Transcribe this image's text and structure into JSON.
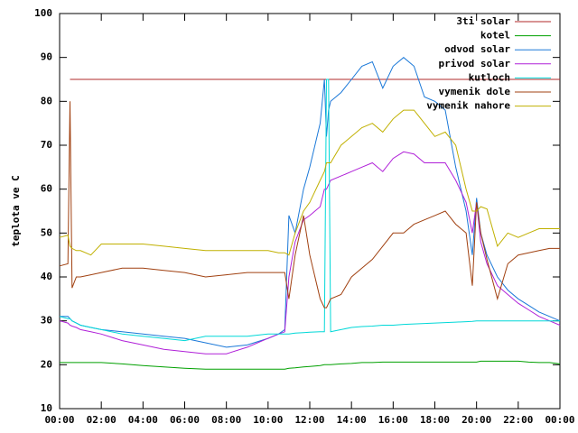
{
  "chart_data": {
    "type": "line",
    "ylabel": "teplota ve C",
    "x": [
      0,
      0.4,
      0.5,
      0.6,
      0.8,
      1,
      1.5,
      2,
      3,
      4,
      5,
      6,
      7,
      8,
      9,
      10,
      10.5,
      10.8,
      11,
      11.3,
      11.7,
      12,
      12.5,
      12.7,
      12.8,
      12.9,
      13,
      13.5,
      14,
      14.5,
      15,
      15.5,
      16,
      16.5,
      17,
      17.5,
      18,
      18.5,
      19,
      19.5,
      19.8,
      20,
      20.2,
      20.5,
      21,
      21.5,
      22,
      22.5,
      23,
      23.5,
      24
    ],
    "xlim": [
      0,
      24
    ],
    "xticks": [
      {
        "value": 0,
        "label": "00:00"
      },
      {
        "value": 2,
        "label": "02:00"
      },
      {
        "value": 4,
        "label": "04:00"
      },
      {
        "value": 6,
        "label": "06:00"
      },
      {
        "value": 8,
        "label": "08:00"
      },
      {
        "value": 10,
        "label": "10:00"
      },
      {
        "value": 12,
        "label": "12:00"
      },
      {
        "value": 14,
        "label": "14:00"
      },
      {
        "value": 16,
        "label": "16:00"
      },
      {
        "value": 18,
        "label": "18:00"
      },
      {
        "value": 20,
        "label": "20:00"
      },
      {
        "value": 22,
        "label": "22:00"
      },
      {
        "value": 24,
        "label": "00:00"
      }
    ],
    "ylim": [
      10,
      100
    ],
    "yticks": [
      10,
      20,
      30,
      40,
      50,
      60,
      70,
      80,
      90,
      100
    ],
    "legend": "top-right",
    "series": [
      {
        "name": "3ti solar",
        "color": "#b02828",
        "values": [
          null,
          null,
          85,
          85,
          85,
          85,
          85,
          85,
          85,
          85,
          85,
          85,
          85,
          85,
          85,
          85,
          85,
          85,
          85,
          85,
          85,
          85,
          85,
          85,
          85,
          85,
          85,
          85,
          85,
          85,
          85,
          85,
          85,
          85,
          85,
          85,
          85,
          85,
          85,
          85,
          85,
          85,
          85,
          85,
          85,
          85,
          85,
          85,
          85,
          85,
          85
        ]
      },
      {
        "name": "kotel",
        "color": "#00a000",
        "values": [
          20.5,
          20.5,
          20.5,
          20.5,
          20.5,
          20.5,
          20.5,
          20.5,
          20.2,
          19.8,
          19.5,
          19.2,
          19,
          19,
          19,
          19,
          19,
          19,
          19.2,
          19.3,
          19.5,
          19.6,
          19.8,
          20,
          20,
          20,
          20,
          20.2,
          20.3,
          20.5,
          20.5,
          20.6,
          20.6,
          20.6,
          20.6,
          20.6,
          20.6,
          20.6,
          20.6,
          20.6,
          20.6,
          20.6,
          20.8,
          20.8,
          20.8,
          20.8,
          20.8,
          20.6,
          20.5,
          20.5,
          20.2
        ]
      },
      {
        "name": "odvod solar",
        "color": "#1a78d8",
        "values": [
          31,
          31,
          30.5,
          30,
          29.5,
          29,
          28.5,
          28,
          27.5,
          27,
          26.5,
          26,
          25,
          24,
          24.5,
          26,
          27,
          28,
          54,
          50,
          60,
          65,
          75,
          85,
          72,
          78,
          80,
          82,
          85,
          88,
          89,
          83,
          88,
          90,
          88,
          81,
          80,
          78,
          65,
          55,
          45,
          58,
          50,
          45,
          40,
          37,
          35,
          33.5,
          32,
          31,
          30
        ]
      },
      {
        "name": "privod solar",
        "color": "#b020d8",
        "values": [
          30,
          29.5,
          29,
          28.8,
          28.5,
          28,
          27.5,
          27,
          25.5,
          24.5,
          23.5,
          23,
          22.5,
          22.5,
          24,
          26,
          27,
          27.5,
          40,
          48,
          53,
          54,
          56,
          60,
          60,
          61,
          62,
          63,
          64,
          65,
          66,
          64,
          67,
          68.5,
          68,
          66,
          66,
          66,
          62,
          57,
          50,
          57,
          48,
          43,
          38,
          36,
          34,
          32.5,
          31,
          30,
          29
        ]
      },
      {
        "name": "kutloch",
        "color": "#00d8d8",
        "values": [
          31,
          30.5,
          30.5,
          30,
          29.5,
          29,
          28.5,
          28,
          27,
          26.5,
          26,
          25.5,
          26.5,
          26.5,
          26.5,
          27,
          27,
          27,
          27,
          27.2,
          27.3,
          27.4,
          27.5,
          27.5,
          85,
          85,
          27.5,
          28,
          28.5,
          28.7,
          28.8,
          29,
          29,
          29.2,
          29.3,
          29.4,
          29.5,
          29.6,
          29.7,
          29.8,
          29.9,
          30,
          30,
          30,
          30,
          30,
          30,
          30,
          30,
          30,
          30
        ]
      },
      {
        "name": "vymenik dole",
        "color": "#a04010",
        "values": [
          42.5,
          43,
          80,
          37.5,
          40,
          40,
          40.5,
          41,
          42,
          42,
          41.5,
          41,
          40,
          40.5,
          41,
          41,
          41,
          41,
          35,
          45,
          54,
          45,
          35,
          33,
          33,
          34,
          35,
          36,
          40,
          42,
          44,
          47,
          50,
          50,
          52,
          53,
          54,
          55,
          52,
          50,
          38,
          57,
          50,
          44,
          35,
          43,
          45,
          45.5,
          46,
          46.5,
          46.5
        ]
      },
      {
        "name": "vymenik nahore",
        "color": "#c0b000",
        "values": [
          49,
          49.5,
          47,
          46.5,
          46,
          46,
          45,
          47.5,
          47.5,
          47.5,
          47,
          46.5,
          46,
          46,
          46,
          46,
          45.5,
          45.5,
          45,
          50,
          55,
          57,
          62,
          64,
          66,
          66,
          66,
          70,
          72,
          74,
          75,
          73,
          76,
          78,
          78,
          75,
          72,
          73,
          70,
          60,
          55,
          55,
          56,
          55.5,
          47,
          50,
          49,
          50,
          51,
          51,
          51
        ]
      }
    ]
  }
}
